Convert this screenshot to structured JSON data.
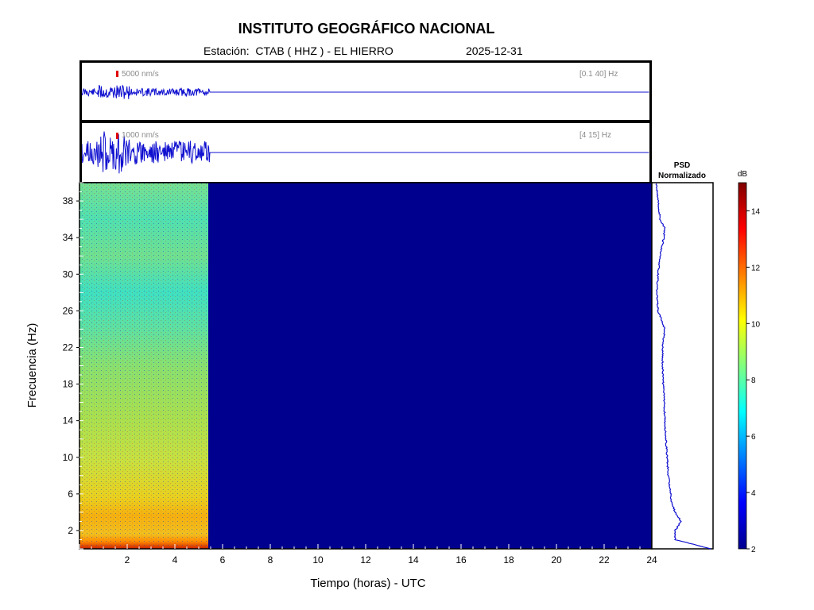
{
  "header": {
    "title": "INSTITUTO GEOGRÁFICO NACIONAL",
    "station": "Estación:  CTAB ( HHZ ) - EL HIERRO",
    "date": "2025-12-31"
  },
  "traces": [
    {
      "scale": "5000 nm/s",
      "band": "[0.1 40] Hz"
    },
    {
      "scale": "1000 nm/s",
      "band": "[4 15] Hz"
    }
  ],
  "psd": {
    "title_line1": "PSD",
    "title_line2": "Normalizado"
  },
  "colorbar": {
    "unit": "dB",
    "ticks": [
      "2",
      "4",
      "6",
      "8",
      "10",
      "12",
      "14"
    ],
    "range": [
      2,
      15
    ],
    "colormap": "jet"
  },
  "chart_data": {
    "type": "heatmap",
    "title": "INSTITUTO GEOGRÁFICO NACIONAL",
    "xlabel": "Tiempo (horas) - UTC",
    "ylabel": "Frecuencia  (Hz)",
    "xlim": [
      0,
      24
    ],
    "ylim": [
      0,
      40
    ],
    "x_ticks": [
      2,
      4,
      6,
      8,
      10,
      12,
      14,
      16,
      18,
      20,
      22,
      24
    ],
    "y_ticks": [
      2,
      6,
      10,
      14,
      18,
      22,
      26,
      30,
      34,
      38
    ],
    "data_end_hour": 5.4,
    "psd_profile": {
      "frequency_hz": [
        0,
        0.5,
        1,
        2,
        3,
        4,
        5,
        6,
        8,
        10,
        12,
        14,
        16,
        18,
        20,
        22,
        24,
        26,
        28,
        30,
        32,
        34,
        35,
        36,
        38,
        40
      ],
      "normalized": [
        1.0,
        0.7,
        0.38,
        0.38,
        0.48,
        0.38,
        0.32,
        0.3,
        0.26,
        0.24,
        0.22,
        0.2,
        0.19,
        0.17,
        0.16,
        0.16,
        0.2,
        0.08,
        0.06,
        0.08,
        0.12,
        0.18,
        0.2,
        0.12,
        0.08,
        0.05
      ]
    }
  }
}
